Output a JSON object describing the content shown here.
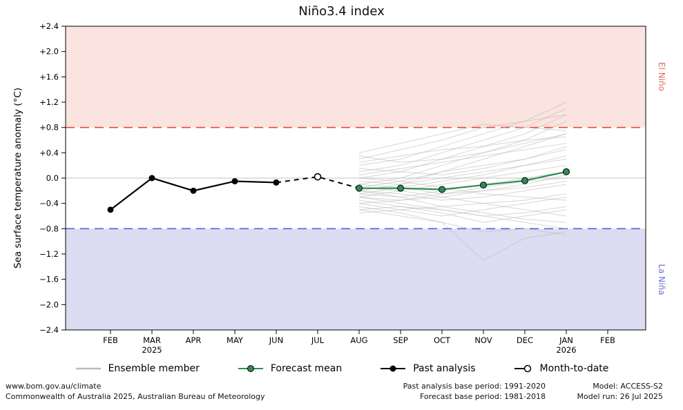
{
  "title": "Niño3.4 index",
  "labels": {
    "el_nino": "El Niño",
    "la_nina": "La Niña"
  },
  "colors": {
    "el_nino_band": "#fbe3df",
    "la_nina_band": "#dcdcf2",
    "el_nino_line": "#f04437",
    "la_nina_line": "#5d5dd5",
    "el_nino_text": "#e06c62",
    "la_nina_text": "#6f6fd0",
    "forecast_green": "#2e8b57",
    "ensemble_gray": "#bbbbbb",
    "past_black": "#000000",
    "zero_line": "#cfcfcf"
  },
  "chart_data": {
    "type": "line",
    "title": "Niño3.4 index",
    "ylabel": "Sea surface temperature anomaly (°C)",
    "ylim": [
      -2.4,
      2.4
    ],
    "grid": false,
    "legend_position": "bottom",
    "y_tick_values": [
      2.4,
      2.0,
      1.6,
      1.2,
      0.8,
      0.4,
      0.0,
      -0.4,
      -0.8,
      -1.2,
      -1.6,
      -2.0,
      -2.4
    ],
    "y_tick_labels": [
      "+2.4",
      "+2.0",
      "+1.6",
      "+1.2",
      "+0.8",
      "+0.4",
      "0.0",
      "−0.4",
      "−0.8",
      "−1.2",
      "−1.6",
      "−2.0",
      "−2.4"
    ],
    "x_tick_labels": [
      "FEB",
      "MAR",
      "APR",
      "MAY",
      "JUN",
      "JUL",
      "AUG",
      "SEP",
      "OCT",
      "NOV",
      "DEC",
      "JAN",
      "FEB"
    ],
    "x_sublabels": {
      "1": "2025",
      "11": "2026"
    },
    "thresholds": {
      "el_nino": 0.8,
      "la_nina": -0.8
    },
    "series": {
      "past_analysis": {
        "name": "Past analysis",
        "start_index": 0,
        "values": [
          -0.5,
          0.0,
          -0.2,
          -0.05,
          -0.07
        ]
      },
      "month_to_date": {
        "name": "Month-to-date",
        "index": 5,
        "value": 0.02
      },
      "forecast_mean": {
        "name": "Forecast mean",
        "start_index": 6,
        "values": [
          -0.16,
          -0.16,
          -0.18,
          -0.11,
          -0.04,
          0.1
        ]
      },
      "ensemble_members": {
        "name": "Ensemble member",
        "start_index": 6,
        "members": [
          [
            -0.2,
            -0.1,
            0.1,
            0.3,
            0.5,
            0.7
          ],
          [
            -0.1,
            0.0,
            0.2,
            0.4,
            0.6,
            0.9
          ],
          [
            -0.3,
            -0.4,
            -0.5,
            -0.6,
            -0.7,
            -0.8
          ],
          [
            -0.25,
            -0.3,
            -0.2,
            -0.1,
            0.0,
            0.1
          ],
          [
            0.0,
            0.1,
            0.3,
            0.5,
            0.7,
            1.0
          ],
          [
            -0.4,
            -0.5,
            -0.6,
            -0.5,
            -0.4,
            -0.3
          ],
          [
            -0.15,
            -0.2,
            -0.3,
            -0.4,
            -0.5,
            -0.6
          ],
          [
            0.1,
            0.2,
            0.4,
            0.6,
            0.8,
            1.1
          ],
          [
            -0.5,
            -0.6,
            -0.7,
            -0.85,
            -0.8,
            -0.9
          ],
          [
            -0.2,
            -0.25,
            -0.35,
            -0.3,
            -0.2,
            -0.1
          ],
          [
            0.2,
            0.3,
            0.5,
            0.7,
            0.9,
            1.2
          ],
          [
            -0.35,
            -0.45,
            -0.55,
            -0.7,
            -0.6,
            -0.5
          ],
          [
            -0.05,
            -0.1,
            0.0,
            0.1,
            0.2,
            0.3
          ],
          [
            0.3,
            0.45,
            0.6,
            0.8,
            0.9,
            1.0
          ],
          [
            -0.45,
            -0.55,
            -0.7,
            -1.3,
            -0.95,
            -0.85
          ],
          [
            -0.1,
            -0.15,
            -0.25,
            -0.2,
            -0.1,
            0.05
          ],
          [
            0.05,
            0.15,
            0.25,
            0.35,
            0.45,
            0.55
          ],
          [
            -0.3,
            -0.2,
            -0.1,
            0.0,
            0.1,
            0.2
          ],
          [
            -0.55,
            -0.5,
            -0.45,
            -0.4,
            -0.35,
            -0.25
          ],
          [
            0.4,
            0.55,
            0.7,
            0.85,
            0.8,
            0.75
          ],
          [
            -0.2,
            -0.3,
            -0.45,
            -0.55,
            -0.65,
            -0.7
          ],
          [
            0.15,
            0.1,
            0.05,
            0.15,
            0.3,
            0.45
          ],
          [
            -0.25,
            -0.15,
            -0.05,
            0.05,
            0.2,
            0.35
          ],
          [
            -0.4,
            -0.35,
            -0.25,
            -0.15,
            -0.05,
            0.0
          ],
          [
            0.25,
            0.35,
            0.45,
            0.5,
            0.6,
            0.65
          ],
          [
            -0.15,
            -0.05,
            0.1,
            0.2,
            0.3,
            0.5
          ],
          [
            -0.5,
            -0.45,
            -0.5,
            -0.6,
            -0.55,
            -0.45
          ],
          [
            0.0,
            -0.05,
            -0.15,
            -0.25,
            -0.3,
            -0.35
          ],
          [
            0.35,
            0.25,
            0.3,
            0.4,
            0.55,
            0.7
          ],
          [
            -0.3,
            -0.35,
            -0.3,
            -0.2,
            -0.15,
            -0.05
          ]
        ]
      }
    }
  },
  "legend": {
    "items": [
      {
        "label": "Ensemble member"
      },
      {
        "label": "Forecast mean"
      },
      {
        "label": "Past analysis"
      },
      {
        "label": "Month-to-date"
      }
    ]
  },
  "footer": {
    "site": "www.bom.gov.au/climate",
    "copyright": "Commonwealth of Australia 2025, Australian Bureau of Meteorology",
    "past_base": "Past analysis base period: 1991-2020",
    "forecast_base": "Forecast base period: 1981-2018",
    "model": "Model: ACCESS-S2",
    "model_run": "Model run: 26 Jul 2025"
  }
}
